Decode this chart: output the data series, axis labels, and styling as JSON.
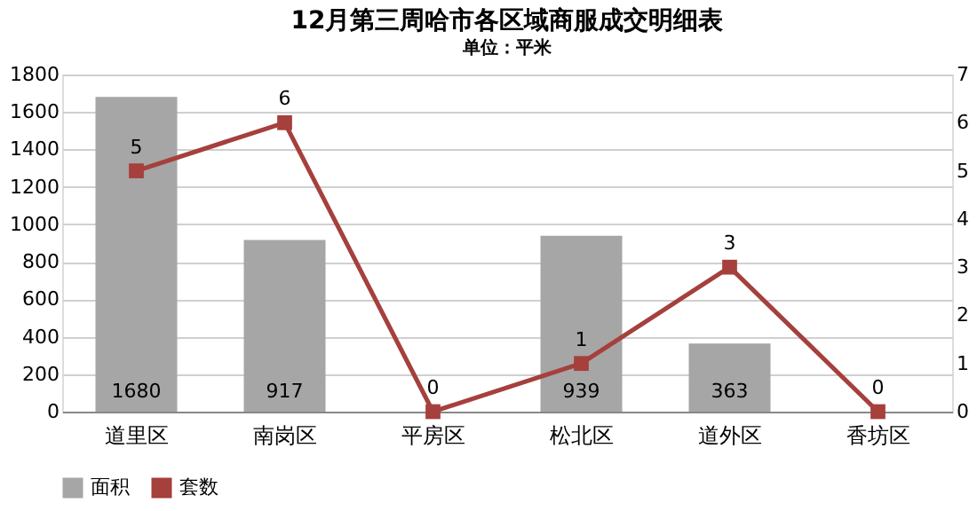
{
  "chart_data": {
    "type": "bar",
    "title": "12月第三周哈市各区域商服成交明细表",
    "subtitle": "单位：平米",
    "categories": [
      "道里区",
      "南岗区",
      "平房区",
      "松北区",
      "道外区",
      "香坊区"
    ],
    "series": [
      {
        "name": "面积",
        "color": "#a6a6a6",
        "values": [
          1680,
          917,
          0,
          939,
          363,
          0
        ],
        "value_labels": [
          "1680",
          "917",
          null,
          "939",
          "363",
          null
        ]
      },
      {
        "name": "套数",
        "type": "line",
        "axis": "y2",
        "color": "#a5403d",
        "values": [
          5,
          6,
          0,
          1,
          3,
          0
        ],
        "value_labels": [
          "5",
          "6",
          "0",
          "1",
          "3",
          "0"
        ],
        "marker": "square",
        "line_style": "solid"
      }
    ],
    "ylim": [
      0,
      1800
    ],
    "yticks": [
      0,
      200,
      400,
      600,
      800,
      1000,
      1200,
      1400,
      1600,
      1800
    ],
    "y2lim": [
      0,
      7
    ],
    "y2ticks": [
      0,
      1,
      2,
      3,
      4,
      5,
      6,
      7
    ],
    "grid": "y",
    "legend": "bottom"
  }
}
